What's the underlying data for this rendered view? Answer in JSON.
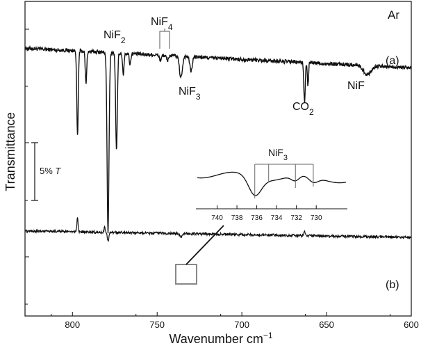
{
  "chart_data": {
    "type": "line",
    "xlabel_main": "Wavenumber cm",
    "xlabel_sup": "−1",
    "ylabel": "Transmittance",
    "x_reversed": true,
    "xlim": [
      828,
      600
    ],
    "xticks": [
      800,
      750,
      700,
      650,
      600
    ],
    "matrix_label": "Ar",
    "scale_bar_label": "5% ",
    "scale_bar_italic": "T",
    "series": [
      {
        "label": "(a)",
        "baseline": 0.82,
        "drift": 0.03,
        "peaks": [
          {
            "x": 797,
            "depth": 0.48,
            "width": 0.6
          },
          {
            "x": 792,
            "depth": 0.18,
            "width": 0.6
          },
          {
            "x": 779,
            "depth": 1.0,
            "width": 0.8
          },
          {
            "x": 774,
            "depth": 0.55,
            "width": 0.7
          },
          {
            "x": 770,
            "depth": 0.12,
            "width": 0.6
          },
          {
            "x": 766,
            "depth": 0.06,
            "width": 0.6
          },
          {
            "x": 748,
            "depth": 0.03,
            "width": 0.8
          },
          {
            "x": 744,
            "depth": 0.03,
            "width": 0.8
          },
          {
            "x": 736,
            "depth": 0.12,
            "width": 1.2
          },
          {
            "x": 730,
            "depth": 0.08,
            "width": 1.0
          },
          {
            "x": 663,
            "depth": 0.22,
            "width": 0.6
          },
          {
            "x": 661,
            "depth": 0.13,
            "width": 0.5
          },
          {
            "x": 626,
            "depth": 0.05,
            "width": 3.0
          }
        ]
      },
      {
        "label": "(b)",
        "baseline": 0.26,
        "drift": 0.01,
        "peaks": [
          {
            "x": 797,
            "depth": -0.08,
            "width": 0.5
          },
          {
            "x": 779,
            "depth": 0.05,
            "width": 0.6
          },
          {
            "x": 781,
            "depth": -0.03,
            "width": 0.4
          },
          {
            "x": 736,
            "depth": 0.02,
            "width": 1.0
          },
          {
            "x": 663,
            "depth": -0.03,
            "width": 0.5
          }
        ]
      }
    ],
    "annotations": [
      {
        "name": "NiF",
        "sub": "2"
      },
      {
        "name": "NiF",
        "sub": "4"
      },
      {
        "name": "NiF",
        "sub": "3"
      },
      {
        "name": "CO",
        "sub": "2"
      },
      {
        "name": "NiF",
        "sub": ""
      }
    ],
    "inset": {
      "title_main": "NiF",
      "title_sub": "3",
      "xlim": [
        742,
        727
      ],
      "xticks": [
        740,
        738,
        736,
        734,
        732,
        730
      ],
      "bands": [
        736.2,
        734.8,
        732.1,
        730.3
      ]
    }
  }
}
